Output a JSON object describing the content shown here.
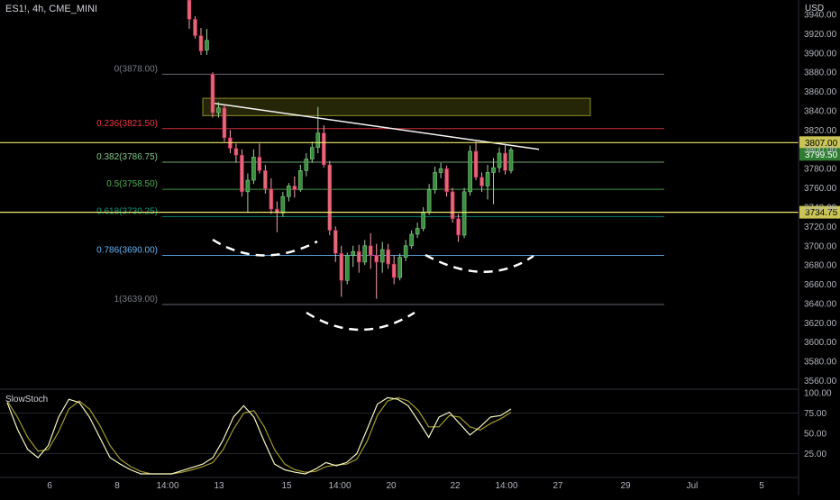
{
  "header": {
    "symbol": "ES1!, 4h, CME_MINI",
    "currency": "USD"
  },
  "chart_data": {
    "type": "candlestick",
    "price_axis": {
      "ylim": [
        3553,
        3955
      ],
      "ticks": [
        3940,
        3920,
        3900,
        3880,
        3860,
        3840,
        3820,
        3800,
        3780,
        3760,
        3740,
        3720,
        3700,
        3680,
        3660,
        3640,
        3620,
        3600,
        3580,
        3560
      ],
      "tick_labels": [
        "3940.00",
        "3920.00",
        "3900.00",
        "3880.00",
        "3860.00",
        "3840.00",
        "3820.00",
        "3800.00",
        "3780.00",
        "3760.00",
        "3740.00",
        "3720.00",
        "3700.00",
        "3680.00",
        "3660.00",
        "3640.00",
        "3620.00",
        "3600.00",
        "3580.00",
        "3560.00"
      ]
    },
    "time_axis": {
      "labels": [
        "6",
        "8",
        "14:00",
        "13",
        "15",
        "14:00",
        "20",
        "22",
        "14:00",
        "27",
        "29",
        "Jul",
        "5"
      ]
    },
    "fibonacci": [
      {
        "label": "0(3878.00)",
        "price": 3878.0,
        "color": "#787b86"
      },
      {
        "label": "0.236(3821.50)",
        "price": 3821.5,
        "color": "#f23645"
      },
      {
        "label": "0.382(3786.75)",
        "price": 3786.75,
        "color": "#81c784"
      },
      {
        "label": "0.5(3758.50)",
        "price": 3758.5,
        "color": "#4caf50"
      },
      {
        "label": "0.618(3730.25)",
        "price": 3730.25,
        "color": "#089981"
      },
      {
        "label": "0.786(3690.00)",
        "price": 3690.0,
        "color": "#64b5f6"
      },
      {
        "label": "1(3639.00)",
        "price": 3639.0,
        "color": "#787b86"
      }
    ],
    "horizontal_lines": [
      {
        "price": 3807.0,
        "label": "3807.00",
        "color": "#f0ea6a"
      },
      {
        "price": 3734.75,
        "label": "3734.75",
        "color": "#f0ea6a"
      }
    ],
    "last_price": {
      "price": 3799.5,
      "label": "3799.50",
      "color": "#2e7d32"
    },
    "candles": [
      {
        "o": 3955,
        "h": 3960,
        "l": 3925,
        "c": 3935
      },
      {
        "o": 3935,
        "h": 3938,
        "l": 3915,
        "c": 3918
      },
      {
        "o": 3918,
        "h": 3926,
        "l": 3898,
        "c": 3902
      },
      {
        "o": 3903,
        "h": 3925,
        "l": 3898,
        "c": 3913
      },
      {
        "o": 3878,
        "h": 3880,
        "l": 3833,
        "c": 3838
      },
      {
        "o": 3838,
        "h": 3849,
        "l": 3833,
        "c": 3843
      },
      {
        "o": 3843,
        "h": 3847,
        "l": 3808,
        "c": 3812
      },
      {
        "o": 3812,
        "h": 3820,
        "l": 3796,
        "c": 3801
      },
      {
        "o": 3801,
        "h": 3806,
        "l": 3786,
        "c": 3794
      },
      {
        "o": 3794,
        "h": 3800,
        "l": 3751,
        "c": 3756
      },
      {
        "o": 3756,
        "h": 3775,
        "l": 3734,
        "c": 3768
      },
      {
        "o": 3768,
        "h": 3800,
        "l": 3764,
        "c": 3792
      },
      {
        "o": 3792,
        "h": 3806,
        "l": 3775,
        "c": 3778
      },
      {
        "o": 3778,
        "h": 3784,
        "l": 3754,
        "c": 3759
      },
      {
        "o": 3759,
        "h": 3770,
        "l": 3733,
        "c": 3738
      },
      {
        "o": 3738,
        "h": 3746,
        "l": 3714,
        "c": 3734
      },
      {
        "o": 3734,
        "h": 3756,
        "l": 3730,
        "c": 3751
      },
      {
        "o": 3751,
        "h": 3765,
        "l": 3746,
        "c": 3762
      },
      {
        "o": 3762,
        "h": 3772,
        "l": 3750,
        "c": 3758
      },
      {
        "o": 3758,
        "h": 3784,
        "l": 3756,
        "c": 3778
      },
      {
        "o": 3778,
        "h": 3796,
        "l": 3772,
        "c": 3790
      },
      {
        "o": 3790,
        "h": 3808,
        "l": 3786,
        "c": 3802
      },
      {
        "o": 3802,
        "h": 3844,
        "l": 3796,
        "c": 3817
      },
      {
        "o": 3817,
        "h": 3825,
        "l": 3781,
        "c": 3784
      },
      {
        "o": 3784,
        "h": 3788,
        "l": 3711,
        "c": 3716
      },
      {
        "o": 3716,
        "h": 3720,
        "l": 3683,
        "c": 3692
      },
      {
        "o": 3692,
        "h": 3700,
        "l": 3647,
        "c": 3664
      },
      {
        "o": 3664,
        "h": 3693,
        "l": 3660,
        "c": 3690
      },
      {
        "o": 3690,
        "h": 3700,
        "l": 3678,
        "c": 3694
      },
      {
        "o": 3694,
        "h": 3701,
        "l": 3672,
        "c": 3683
      },
      {
        "o": 3683,
        "h": 3706,
        "l": 3680,
        "c": 3700
      },
      {
        "o": 3700,
        "h": 3713,
        "l": 3676,
        "c": 3690
      },
      {
        "o": 3690,
        "h": 3702,
        "l": 3645,
        "c": 3683
      },
      {
        "o": 3683,
        "h": 3704,
        "l": 3672,
        "c": 3696
      },
      {
        "o": 3696,
        "h": 3702,
        "l": 3676,
        "c": 3681
      },
      {
        "o": 3681,
        "h": 3690,
        "l": 3660,
        "c": 3667
      },
      {
        "o": 3667,
        "h": 3692,
        "l": 3664,
        "c": 3688
      },
      {
        "o": 3688,
        "h": 3706,
        "l": 3684,
        "c": 3700
      },
      {
        "o": 3700,
        "h": 3716,
        "l": 3697,
        "c": 3712
      },
      {
        "o": 3712,
        "h": 3724,
        "l": 3708,
        "c": 3718
      },
      {
        "o": 3718,
        "h": 3740,
        "l": 3715,
        "c": 3735
      },
      {
        "o": 3735,
        "h": 3764,
        "l": 3732,
        "c": 3758
      },
      {
        "o": 3758,
        "h": 3782,
        "l": 3754,
        "c": 3776
      },
      {
        "o": 3776,
        "h": 3786,
        "l": 3770,
        "c": 3780
      },
      {
        "o": 3780,
        "h": 3783,
        "l": 3751,
        "c": 3756
      },
      {
        "o": 3756,
        "h": 3760,
        "l": 3724,
        "c": 3728
      },
      {
        "o": 3728,
        "h": 3733,
        "l": 3704,
        "c": 3711
      },
      {
        "o": 3711,
        "h": 3760,
        "l": 3708,
        "c": 3756
      },
      {
        "o": 3756,
        "h": 3804,
        "l": 3752,
        "c": 3798
      },
      {
        "o": 3798,
        "h": 3808,
        "l": 3768,
        "c": 3771
      },
      {
        "o": 3771,
        "h": 3776,
        "l": 3756,
        "c": 3762
      },
      {
        "o": 3762,
        "h": 3784,
        "l": 3748,
        "c": 3776
      },
      {
        "o": 3776,
        "h": 3791,
        "l": 3743,
        "c": 3781
      },
      {
        "o": 3781,
        "h": 3802,
        "l": 3776,
        "c": 3796
      },
      {
        "o": 3796,
        "h": 3806,
        "l": 3774,
        "c": 3778
      },
      {
        "o": 3778,
        "h": 3802,
        "l": 3775,
        "c": 3799.5
      }
    ],
    "oscillator": {
      "name": "SlowStoch",
      "ylim": [
        0,
        100
      ],
      "ticks": [
        100,
        75,
        50,
        25
      ],
      "tick_labels": [
        "100.00",
        "75.00",
        "50.00",
        "25.00"
      ],
      "k": [
        88,
        55,
        30,
        20,
        35,
        70,
        92,
        88,
        70,
        45,
        20,
        12,
        5,
        0,
        0,
        0,
        0,
        4,
        8,
        12,
        20,
        42,
        70,
        84,
        70,
        40,
        12,
        5,
        2,
        0,
        6,
        14,
        10,
        14,
        25,
        55,
        86,
        94,
        92,
        84,
        65,
        45,
        70,
        76,
        62,
        48,
        58,
        70,
        72,
        80
      ],
      "d": [
        90,
        70,
        45,
        28,
        30,
        52,
        80,
        90,
        80,
        60,
        35,
        18,
        9,
        3,
        0,
        0,
        0,
        2,
        5,
        9,
        14,
        30,
        55,
        75,
        78,
        58,
        30,
        12,
        5,
        2,
        3,
        9,
        11,
        12,
        18,
        40,
        72,
        90,
        94,
        90,
        78,
        58,
        58,
        72,
        70,
        58,
        54,
        62,
        68,
        76
      ],
      "k_color": "#f5f5c4",
      "d_color": "#a09a2c"
    }
  }
}
